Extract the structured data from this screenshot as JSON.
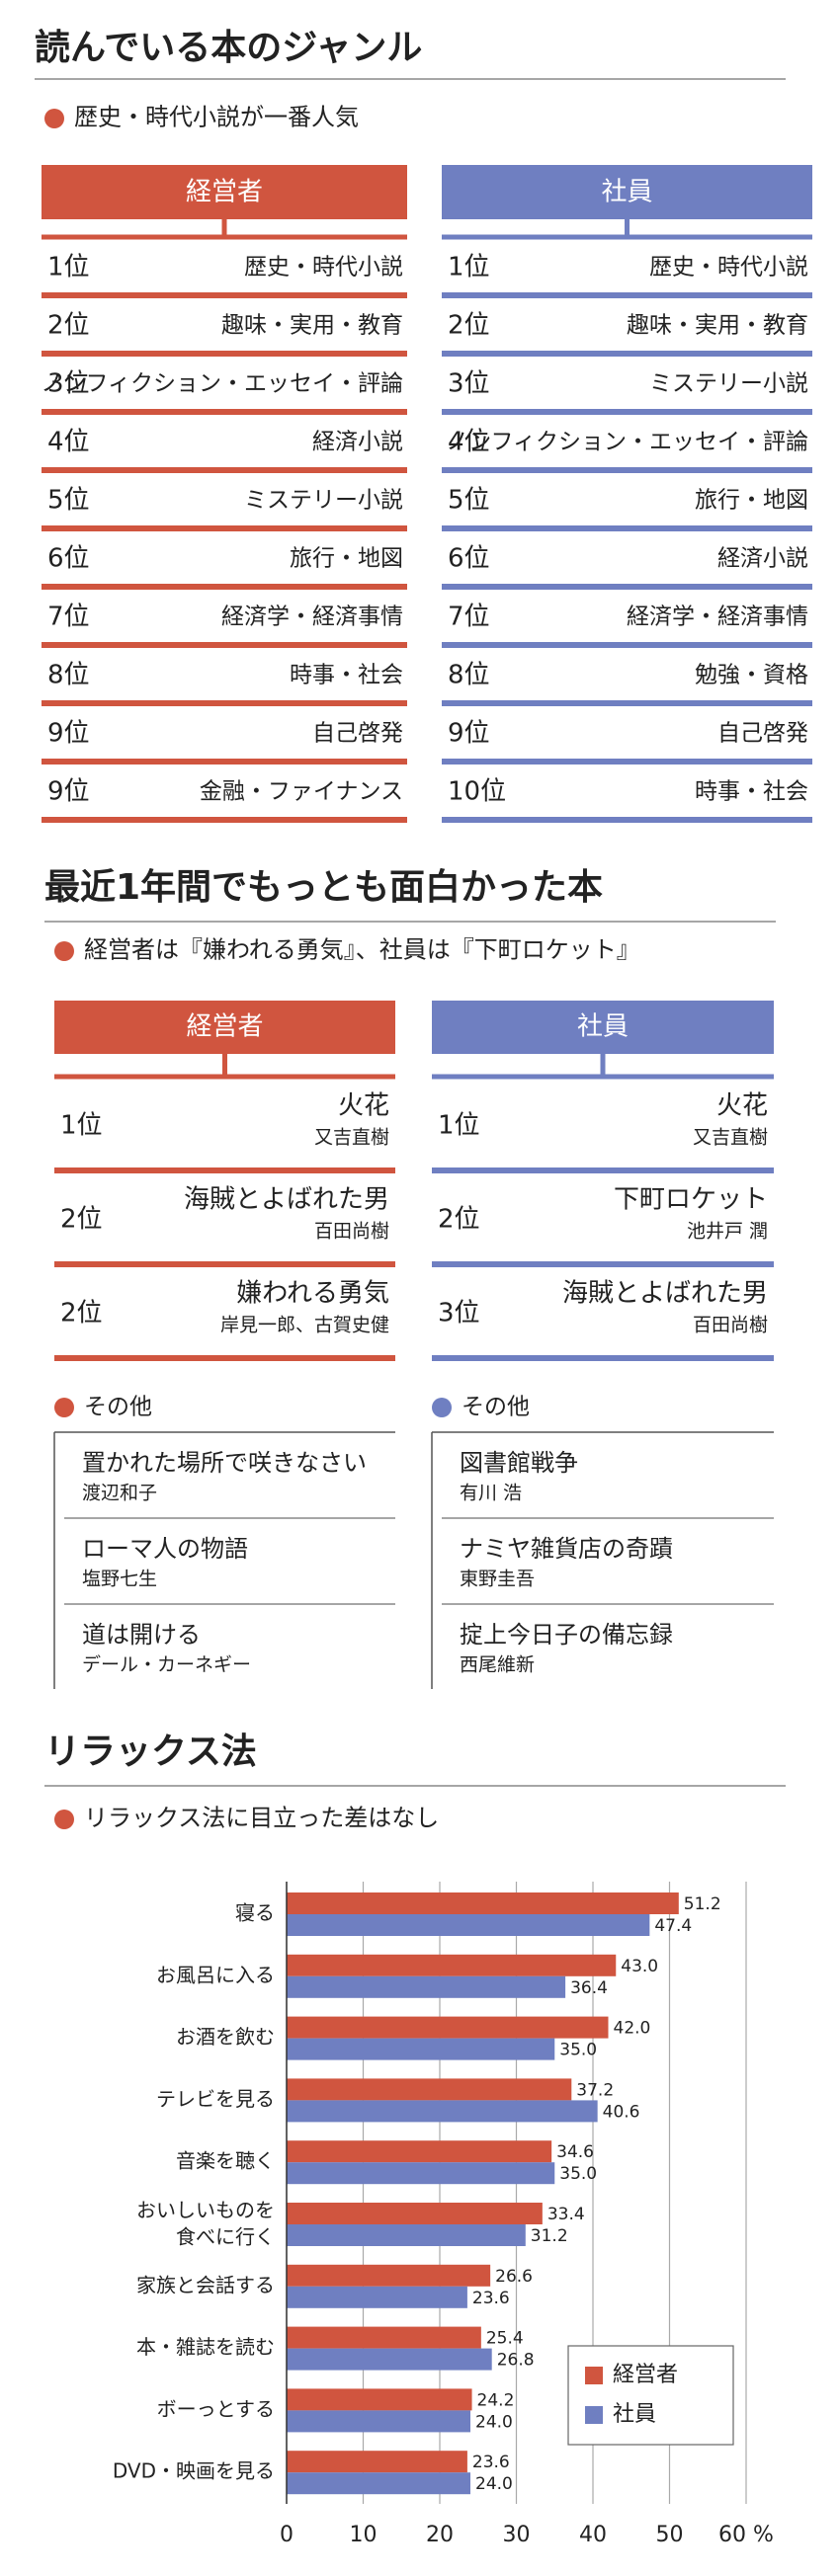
{
  "section1": {
    "title": "読んでいる本のジャンル",
    "subtitle": "歴史・時代小説が一番人気",
    "columns": [
      {
        "header": "経営者",
        "rows": [
          {
            "rank": "1位",
            "genre": "歴史・時代小説"
          },
          {
            "rank": "2位",
            "genre": "趣味・実用・教育"
          },
          {
            "rank": "3位",
            "genre": "ノンフィクション・エッセイ・評論"
          },
          {
            "rank": "4位",
            "genre": "経済小説"
          },
          {
            "rank": "5位",
            "genre": "ミステリー小説"
          },
          {
            "rank": "6位",
            "genre": "旅行・地図"
          },
          {
            "rank": "7位",
            "genre": "経済学・経済事情"
          },
          {
            "rank": "8位",
            "genre": "時事・社会"
          },
          {
            "rank": "9位",
            "genre": "自己啓発"
          },
          {
            "rank": "9位",
            "genre": "金融・ファイナンス"
          }
        ]
      },
      {
        "header": "社員",
        "rows": [
          {
            "rank": "1位",
            "genre": "歴史・時代小説"
          },
          {
            "rank": "2位",
            "genre": "趣味・実用・教育"
          },
          {
            "rank": "3位",
            "genre": "ミステリー小説"
          },
          {
            "rank": "4位",
            "genre": "ノンフィクション・エッセイ・評論"
          },
          {
            "rank": "5位",
            "genre": "旅行・地図"
          },
          {
            "rank": "6位",
            "genre": "経済小説"
          },
          {
            "rank": "7位",
            "genre": "経済学・経済事情"
          },
          {
            "rank": "8位",
            "genre": "勉強・資格"
          },
          {
            "rank": "9位",
            "genre": "自己啓発"
          },
          {
            "rank": "10位",
            "genre": "時事・社会"
          }
        ]
      }
    ]
  },
  "section2": {
    "title": "最近1年間でもっとも面白かった本",
    "subtitle": "経営者は『嫌われる勇気』、社員は『下町ロケット』",
    "columns": [
      {
        "header": "経営者",
        "rows": [
          {
            "rank": "1位",
            "book": "火花",
            "author": "又吉直樹"
          },
          {
            "rank": "2位",
            "book": "海賊とよばれた男",
            "author": "百田尚樹"
          },
          {
            "rank": "2位",
            "book": "嫌われる勇気",
            "author": "岸見一郎、古賀史健"
          }
        ],
        "others_label": "その他",
        "others": [
          {
            "book": "置かれた場所で咲きなさい",
            "author": "渡辺和子"
          },
          {
            "book": "ローマ人の物語",
            "author": "塩野七生"
          },
          {
            "book": "道は開ける",
            "author": "デール・カーネギー"
          }
        ]
      },
      {
        "header": "社員",
        "rows": [
          {
            "rank": "1位",
            "book": "火花",
            "author": "又吉直樹"
          },
          {
            "rank": "2位",
            "book": "下町ロケット",
            "author": "池井戸 潤"
          },
          {
            "rank": "3位",
            "book": "海賊とよばれた男",
            "author": "百田尚樹"
          }
        ],
        "others_label": "その他",
        "others": [
          {
            "book": "図書館戦争",
            "author": "有川 浩"
          },
          {
            "book": "ナミヤ雑貨店の奇蹟",
            "author": "東野圭吾"
          },
          {
            "book": "掟上今日子の備忘録",
            "author": "西尾維新"
          }
        ]
      }
    ]
  },
  "chart_data": {
    "type": "hbar",
    "title": "リラックス法",
    "subtitle": "リラックス法に目立った差はなし",
    "categories": [
      "寝る",
      "お風呂に入る",
      "お酒を飲む",
      "テレビを見る",
      "音楽を聴く",
      "おいしいものを\n食べに行く",
      "家族と会話する",
      "本・雑誌を読む",
      "ボーっとする",
      "DVD・映画を見る"
    ],
    "series": [
      {
        "name": "経営者",
        "color": "#d0553f",
        "values": [
          51.2,
          43.0,
          42.0,
          37.2,
          34.6,
          33.4,
          26.6,
          25.4,
          24.2,
          23.6
        ],
        "value_labels": [
          "51.2",
          "43.0",
          "42.0",
          "37.2",
          "34.6",
          "33.4",
          "26.6",
          "25.4",
          "24.2",
          "23.6"
        ]
      },
      {
        "name": "社員",
        "color": "#6f7fc1",
        "values": [
          47.4,
          36.4,
          35.0,
          40.6,
          35.0,
          31.2,
          23.6,
          26.8,
          24.0,
          24.0
        ],
        "value_labels": [
          "47.4",
          "36.4",
          "35.0",
          "40.6",
          "35.0",
          "31.2",
          "23.6",
          "26.8",
          "24.0",
          "24.0"
        ]
      }
    ],
    "xlim": [
      0,
      60
    ],
    "xticks": [
      0,
      10,
      20,
      30,
      40,
      50,
      {
        "value": 60,
        "label": "60 %"
      }
    ],
    "grid": true,
    "legend": "lower-right"
  }
}
